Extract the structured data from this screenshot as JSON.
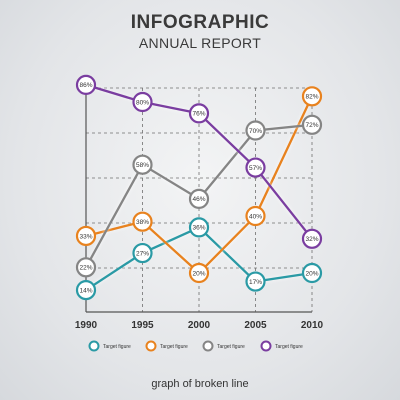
{
  "header": {
    "title": "INFOGRAPHIC",
    "subtitle": "ANNUAL REPORT"
  },
  "caption": "graph of broken line",
  "chart_data": {
    "type": "line",
    "title": "INFOGRAPHIC",
    "subtitle": "ANNUAL REPORT",
    "x": [
      "1990",
      "1995",
      "2000",
      "2005",
      "2010"
    ],
    "ylim": [
      0,
      100
    ],
    "grid": true,
    "legend_position": "bottom",
    "series": [
      {
        "name": "Target figure",
        "color": "#2a9aa5",
        "values": [
          14,
          27,
          36,
          17,
          20
        ],
        "labels": [
          "14%",
          "27%",
          "36%",
          "17%",
          "20%"
        ]
      },
      {
        "name": "Target figure",
        "color": "#e8821e",
        "values": [
          33,
          38,
          20,
          40,
          82
        ],
        "labels": [
          "33%",
          "38%",
          "20%",
          "40%",
          "82%"
        ]
      },
      {
        "name": "Target figure",
        "color": "#858585",
        "values": [
          22,
          58,
          46,
          70,
          72
        ],
        "labels": [
          "22%",
          "58%",
          "46%",
          "70%",
          "72%"
        ]
      },
      {
        "name": "Target figure",
        "color": "#7a3da0",
        "values": [
          86,
          80,
          76,
          57,
          32
        ],
        "labels": [
          "86%",
          "80%",
          "76%",
          "57%",
          "32%"
        ]
      }
    ]
  }
}
